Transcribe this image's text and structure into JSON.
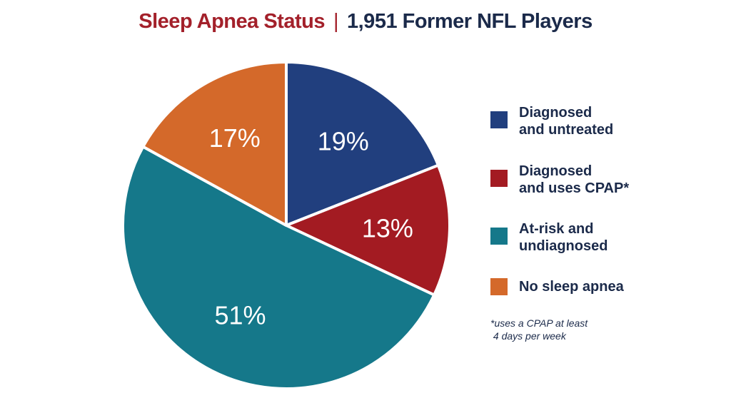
{
  "chart_data": {
    "type": "pie",
    "title": "Sleep Apnea Status",
    "subtitle": "1,951 Former NFL Players",
    "title_separator": "|",
    "start_angle": "top, clockwise",
    "legend_position": "right",
    "slices": [
      {
        "name": "Diagnosed and untreated",
        "legend_label": "Diagnosed\nand untreated",
        "value": 19,
        "label": "19%",
        "color": "#213f7e"
      },
      {
        "name": "Diagnosed and uses CPAP*",
        "legend_label": "Diagnosed\nand uses CPAP*",
        "value": 13,
        "label": "13%",
        "color": "#a31b22"
      },
      {
        "name": "At-risk and undiagnosed",
        "legend_label": "At-risk and\nundiagnosed",
        "value": 51,
        "label": "51%",
        "color": "#15788a"
      },
      {
        "name": "No sleep apnea",
        "legend_label": "No sleep apnea",
        "value": 17,
        "label": "17%",
        "color": "#d4692a"
      }
    ],
    "footnote": "*uses a CPAP at least\n 4 days per week"
  }
}
